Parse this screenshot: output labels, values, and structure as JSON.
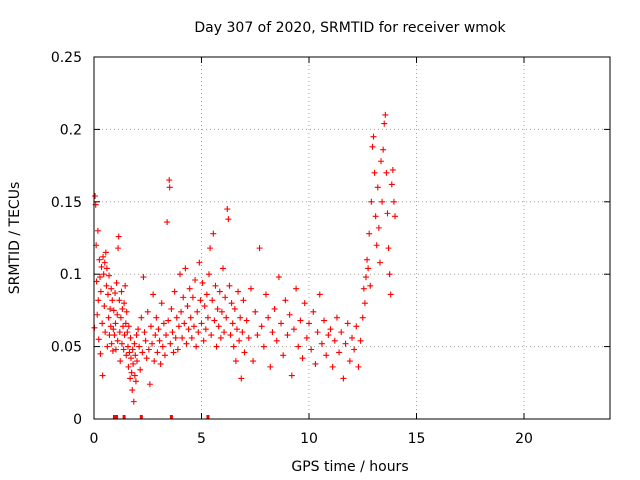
{
  "chart_data": {
    "type": "scatter",
    "title": "Day 307 of 2020, SRMTID for receiver wmok",
    "xlabel": "GPS time / hours",
    "ylabel": "SRMTID / TECUs",
    "xlim": [
      0,
      24
    ],
    "ylim": [
      0,
      0.25
    ],
    "xticks": [
      0,
      5,
      10,
      15,
      20
    ],
    "xtick_labels": [
      "0",
      "5",
      "10",
      "15",
      "20"
    ],
    "yticks": [
      0,
      0.05,
      0.1,
      0.15,
      0.2,
      0.25
    ],
    "ytick_labels": [
      "0",
      "0.05",
      "0.1",
      "0.15",
      "0.2",
      "0.25"
    ],
    "grid": true,
    "marker": "plus",
    "color": "#ff0000",
    "points": [
      [
        0.02,
        0.063
      ],
      [
        0.05,
        0.154
      ],
      [
        0.08,
        0.148
      ],
      [
        0.1,
        0.12
      ],
      [
        0.12,
        0.095
      ],
      [
        0.15,
        0.072
      ],
      [
        0.18,
        0.13
      ],
      [
        0.2,
        0.082
      ],
      [
        0.22,
        0.055
      ],
      [
        0.25,
        0.11
      ],
      [
        0.28,
        0.098
      ],
      [
        0.3,
        0.045
      ],
      [
        0.32,
        0.088
      ],
      [
        0.35,
        0.105
      ],
      [
        0.38,
        0.066
      ],
      [
        0.4,
        0.03
      ],
      [
        0.42,
        0.112
      ],
      [
        0.45,
        0.1
      ],
      [
        0.48,
        0.078
      ],
      [
        0.5,
        0.108
      ],
      [
        0.52,
        0.06
      ],
      [
        0.55,
        0.115
      ],
      [
        0.58,
        0.092
      ],
      [
        0.6,
        0.104
      ],
      [
        0.62,
        0.05
      ],
      [
        0.65,
        0.086
      ],
      [
        0.68,
        0.07
      ],
      [
        0.7,
        0.099
      ],
      [
        0.72,
        0.058
      ],
      [
        0.75,
        0.076
      ],
      [
        0.78,
        0.064
      ],
      [
        0.8,
        0.09
      ],
      [
        0.82,
        0.052
      ],
      [
        0.85,
        0.082
      ],
      [
        0.88,
        0.047
      ],
      [
        0.9,
        0.062
      ],
      [
        0.92,
        0.075
      ],
      [
        0.95,
        0.058
      ],
      [
        0.98,
        0.087
      ],
      [
        1.0,
        0.066
      ],
      [
        1.02,
        0.048
      ],
      [
        1.05,
        0.094
      ],
      [
        1.08,
        0.072
      ],
      [
        1.1,
        0.054
      ],
      [
        1.12,
        0.118
      ],
      [
        1.15,
        0.126
      ],
      [
        1.18,
        0.082
      ],
      [
        1.2,
        0.06
      ],
      [
        1.22,
        0.04
      ],
      [
        1.25,
        0.07
      ],
      [
        1.28,
        0.088
      ],
      [
        1.3,
        0.052
      ],
      [
        1.32,
        0.076
      ],
      [
        1.35,
        0.064
      ],
      [
        1.38,
        0.048
      ],
      [
        1.4,
        0.08
      ],
      [
        1.42,
        0.058
      ],
      [
        1.45,
        0.092
      ],
      [
        1.48,
        0.066
      ],
      [
        1.5,
        0.044
      ],
      [
        1.52,
        0.074
      ],
      [
        1.55,
        0.06
      ],
      [
        1.58,
        0.05
      ],
      [
        1.6,
        0.036
      ],
      [
        1.62,
        0.064
      ],
      [
        1.65,
        0.046
      ],
      [
        1.68,
        0.028
      ],
      [
        1.7,
        0.056
      ],
      [
        1.72,
        0.042
      ],
      [
        1.75,
        0.032
      ],
      [
        1.78,
        0.02
      ],
      [
        1.8,
        0.048
      ],
      [
        1.82,
        0.038
      ],
      [
        1.85,
        0.012
      ],
      [
        1.88,
        0.052
      ],
      [
        1.9,
        0.03
      ],
      [
        1.92,
        0.044
      ],
      [
        1.95,
        0.026
      ],
      [
        1.98,
        0.058
      ],
      [
        2.0,
        0.04
      ],
      [
        2.05,
        0.062
      ],
      [
        2.1,
        0.05
      ],
      [
        2.15,
        0.034
      ],
      [
        2.2,
        0.07
      ],
      [
        2.25,
        0.046
      ],
      [
        2.3,
        0.098
      ],
      [
        2.35,
        0.06
      ],
      [
        2.4,
        0.054
      ],
      [
        2.45,
        0.042
      ],
      [
        2.5,
        0.074
      ],
      [
        2.55,
        0.048
      ],
      [
        2.6,
        0.024
      ],
      [
        2.65,
        0.064
      ],
      [
        2.7,
        0.052
      ],
      [
        2.75,
        0.086
      ],
      [
        2.8,
        0.04
      ],
      [
        2.85,
        0.058
      ],
      [
        2.9,
        0.07
      ],
      [
        2.95,
        0.046
      ],
      [
        3.0,
        0.062
      ],
      [
        3.05,
        0.054
      ],
      [
        3.1,
        0.038
      ],
      [
        3.15,
        0.08
      ],
      [
        3.2,
        0.05
      ],
      [
        3.25,
        0.066
      ],
      [
        3.3,
        0.044
      ],
      [
        3.35,
        0.058
      ],
      [
        3.4,
        0.136
      ],
      [
        3.45,
        0.068
      ],
      [
        3.5,
        0.165
      ],
      [
        3.52,
        0.16
      ],
      [
        3.55,
        0.052
      ],
      [
        3.6,
        0.076
      ],
      [
        3.65,
        0.06
      ],
      [
        3.7,
        0.046
      ],
      [
        3.75,
        0.088
      ],
      [
        3.8,
        0.056
      ],
      [
        3.85,
        0.07
      ],
      [
        3.9,
        0.048
      ],
      [
        3.95,
        0.064
      ],
      [
        4.0,
        0.1
      ],
      [
        4.05,
        0.074
      ],
      [
        4.1,
        0.056
      ],
      [
        4.15,
        0.084
      ],
      [
        4.2,
        0.066
      ],
      [
        4.25,
        0.104
      ],
      [
        4.3,
        0.052
      ],
      [
        4.35,
        0.078
      ],
      [
        4.4,
        0.062
      ],
      [
        4.45,
        0.09
      ],
      [
        4.5,
        0.07
      ],
      [
        4.55,
        0.056
      ],
      [
        4.6,
        0.084
      ],
      [
        4.65,
        0.064
      ],
      [
        4.7,
        0.096
      ],
      [
        4.75,
        0.05
      ],
      [
        4.8,
        0.074
      ],
      [
        4.85,
        0.06
      ],
      [
        4.9,
        0.108
      ],
      [
        4.95,
        0.082
      ],
      [
        5.0,
        0.066
      ],
      [
        5.05,
        0.094
      ],
      [
        5.1,
        0.054
      ],
      [
        5.15,
        0.078
      ],
      [
        5.2,
        0.062
      ],
      [
        5.25,
        0.086
      ],
      [
        5.3,
        0.07
      ],
      [
        5.35,
        0.1
      ],
      [
        5.4,
        0.118
      ],
      [
        5.45,
        0.058
      ],
      [
        5.5,
        0.082
      ],
      [
        5.55,
        0.128
      ],
      [
        5.6,
        0.068
      ],
      [
        5.65,
        0.092
      ],
      [
        5.7,
        0.05
      ],
      [
        5.75,
        0.076
      ],
      [
        5.8,
        0.064
      ],
      [
        5.85,
        0.088
      ],
      [
        5.9,
        0.056
      ],
      [
        5.95,
        0.074
      ],
      [
        6.0,
        0.104
      ],
      [
        6.05,
        0.06
      ],
      [
        6.1,
        0.084
      ],
      [
        6.15,
        0.07
      ],
      [
        6.2,
        0.145
      ],
      [
        6.25,
        0.138
      ],
      [
        6.3,
        0.092
      ],
      [
        6.35,
        0.058
      ],
      [
        6.4,
        0.08
      ],
      [
        6.45,
        0.066
      ],
      [
        6.5,
        0.05
      ],
      [
        6.55,
        0.076
      ],
      [
        6.6,
        0.04
      ],
      [
        6.65,
        0.062
      ],
      [
        6.7,
        0.088
      ],
      [
        6.75,
        0.054
      ],
      [
        6.8,
        0.07
      ],
      [
        6.85,
        0.028
      ],
      [
        6.9,
        0.06
      ],
      [
        6.95,
        0.082
      ],
      [
        7.0,
        0.046
      ],
      [
        7.1,
        0.068
      ],
      [
        7.2,
        0.056
      ],
      [
        7.3,
        0.09
      ],
      [
        7.4,
        0.04
      ],
      [
        7.5,
        0.074
      ],
      [
        7.6,
        0.058
      ],
      [
        7.7,
        0.118
      ],
      [
        7.8,
        0.064
      ],
      [
        7.9,
        0.05
      ],
      [
        8.0,
        0.086
      ],
      [
        8.1,
        0.07
      ],
      [
        8.2,
        0.036
      ],
      [
        8.3,
        0.06
      ],
      [
        8.4,
        0.076
      ],
      [
        8.5,
        0.054
      ],
      [
        8.6,
        0.098
      ],
      [
        8.7,
        0.066
      ],
      [
        8.8,
        0.044
      ],
      [
        8.9,
        0.082
      ],
      [
        9.0,
        0.058
      ],
      [
        9.1,
        0.072
      ],
      [
        9.2,
        0.03
      ],
      [
        9.3,
        0.062
      ],
      [
        9.4,
        0.09
      ],
      [
        9.5,
        0.05
      ],
      [
        9.6,
        0.068
      ],
      [
        9.7,
        0.042
      ],
      [
        9.8,
        0.08
      ],
      [
        9.9,
        0.056
      ],
      [
        10.0,
        0.066
      ],
      [
        10.1,
        0.048
      ],
      [
        10.2,
        0.074
      ],
      [
        10.3,
        0.038
      ],
      [
        10.4,
        0.06
      ],
      [
        10.5,
        0.086
      ],
      [
        10.6,
        0.052
      ],
      [
        10.7,
        0.068
      ],
      [
        10.8,
        0.044
      ],
      [
        10.9,
        0.058
      ],
      [
        11.0,
        0.062
      ],
      [
        11.1,
        0.036
      ],
      [
        11.2,
        0.054
      ],
      [
        11.3,
        0.07
      ],
      [
        11.4,
        0.046
      ],
      [
        11.5,
        0.06
      ],
      [
        11.6,
        0.028
      ],
      [
        11.7,
        0.052
      ],
      [
        11.8,
        0.066
      ],
      [
        11.9,
        0.04
      ],
      [
        12.0,
        0.056
      ],
      [
        12.1,
        0.048
      ],
      [
        12.2,
        0.064
      ],
      [
        12.3,
        0.036
      ],
      [
        12.4,
        0.054
      ],
      [
        12.5,
        0.07
      ],
      [
        12.55,
        0.09
      ],
      [
        12.6,
        0.08
      ],
      [
        12.65,
        0.098
      ],
      [
        12.7,
        0.11
      ],
      [
        12.75,
        0.104
      ],
      [
        12.8,
        0.128
      ],
      [
        12.85,
        0.092
      ],
      [
        12.9,
        0.15
      ],
      [
        12.95,
        0.188
      ],
      [
        13.0,
        0.195
      ],
      [
        13.05,
        0.17
      ],
      [
        13.1,
        0.14
      ],
      [
        13.15,
        0.12
      ],
      [
        13.2,
        0.16
      ],
      [
        13.25,
        0.132
      ],
      [
        13.3,
        0.108
      ],
      [
        13.35,
        0.178
      ],
      [
        13.4,
        0.15
      ],
      [
        13.45,
        0.186
      ],
      [
        13.5,
        0.204
      ],
      [
        13.55,
        0.21
      ],
      [
        13.6,
        0.17
      ],
      [
        13.65,
        0.142
      ],
      [
        13.7,
        0.118
      ],
      [
        13.75,
        0.1
      ],
      [
        13.8,
        0.086
      ],
      [
        13.85,
        0.162
      ],
      [
        13.9,
        0.172
      ],
      [
        13.95,
        0.15
      ],
      [
        14.0,
        0.14
      ]
    ],
    "rug_x": [
      0.95,
      1.05,
      1.4,
      2.2,
      3.6,
      5.3
    ]
  }
}
